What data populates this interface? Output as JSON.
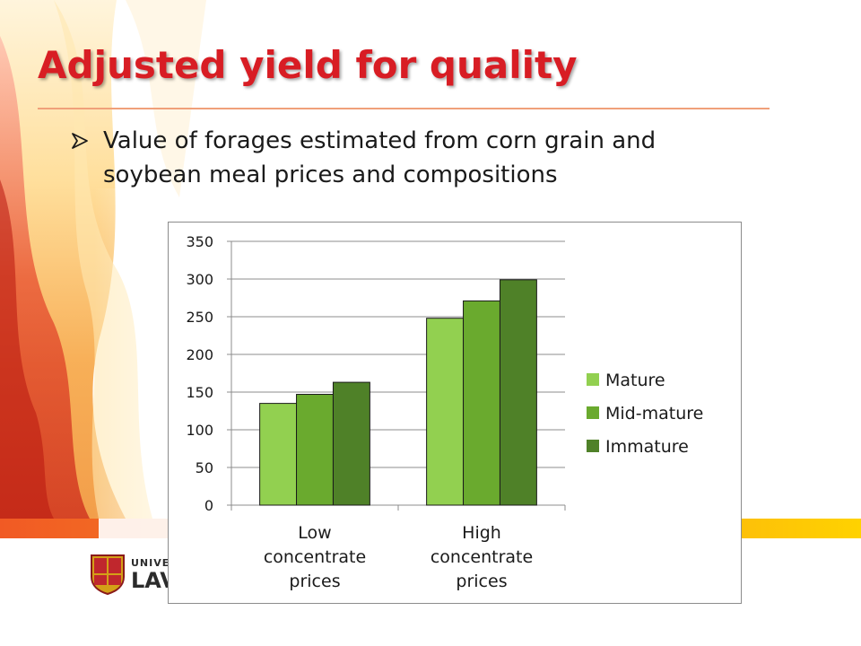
{
  "slide": {
    "title": "Adjusted yield for quality",
    "bullets": [
      {
        "text": "Value of forages estimated from corn grain and soybean meal prices and compositions",
        "marker": "arrow-bullet-icon"
      }
    ]
  },
  "logo": {
    "line1": "UNIVE",
    "line2": "LAV",
    "icon": "university-shield-icon"
  },
  "colors": {
    "title": "#d81d24",
    "Mature": "#92d050",
    "Mid-mature": "#6aaa2e",
    "Immature": "#4f8128"
  },
  "chart_data": {
    "type": "bar",
    "categories": [
      [
        "Low",
        "concentrate",
        "prices"
      ],
      [
        "High",
        "concentrate",
        "prices"
      ]
    ],
    "series": [
      {
        "name": "Mature",
        "values": [
          135,
          248
        ]
      },
      {
        "name": "Mid-mature",
        "values": [
          147,
          271
        ]
      },
      {
        "name": "Immature",
        "values": [
          163,
          299
        ]
      }
    ],
    "ylim": [
      0,
      350
    ],
    "yticks": [
      "0",
      "50",
      "100",
      "150",
      "200",
      "250",
      "300",
      "350"
    ],
    "grid": true,
    "legend": "right"
  }
}
